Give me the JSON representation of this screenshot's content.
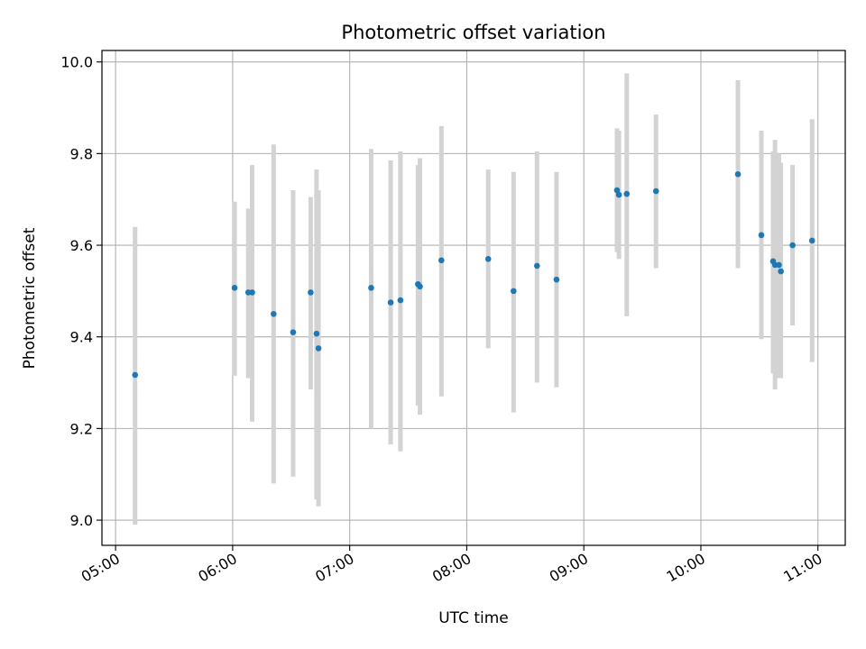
{
  "chart_data": {
    "type": "scatter",
    "title": "Photometric offset variation",
    "xlabel": "UTC time",
    "ylabel": "Photometric offset",
    "xlim": [
      "04:53",
      "11:14"
    ],
    "ylim": [
      8.945,
      10.025
    ],
    "x_ticks": [
      "05:00",
      "06:00",
      "07:00",
      "08:00",
      "09:00",
      "10:00",
      "11:00"
    ],
    "y_ticks": [
      "9.0",
      "9.2",
      "9.4",
      "9.6",
      "9.8",
      "10.0"
    ],
    "grid": true,
    "colors": {
      "point": "#1f77b4",
      "errorbar": "#d3d3d3",
      "grid": "#b0b0b0"
    },
    "points": [
      {
        "x": "05:10",
        "y": 9.317,
        "ymin": 8.99,
        "ymax": 9.64
      },
      {
        "x": "06:01",
        "y": 9.507,
        "ymin": 9.315,
        "ymax": 9.695
      },
      {
        "x": "06:08",
        "y": 9.497,
        "ymin": 9.31,
        "ymax": 9.68
      },
      {
        "x": "06:10",
        "y": 9.497,
        "ymin": 9.215,
        "ymax": 9.775
      },
      {
        "x": "06:21",
        "y": 9.45,
        "ymin": 9.08,
        "ymax": 9.82
      },
      {
        "x": "06:31",
        "y": 9.41,
        "ymin": 9.095,
        "ymax": 9.72
      },
      {
        "x": "06:40",
        "y": 9.497,
        "ymin": 9.285,
        "ymax": 9.705
      },
      {
        "x": "06:43",
        "y": 9.407,
        "ymin": 9.045,
        "ymax": 9.765
      },
      {
        "x": "06:44",
        "y": 9.375,
        "ymin": 9.03,
        "ymax": 9.72
      },
      {
        "x": "07:11",
        "y": 9.507,
        "ymin": 9.2,
        "ymax": 9.81
      },
      {
        "x": "07:21",
        "y": 9.475,
        "ymin": 9.165,
        "ymax": 9.785
      },
      {
        "x": "07:26",
        "y": 9.48,
        "ymin": 9.15,
        "ymax": 9.805
      },
      {
        "x": "07:35",
        "y": 9.515,
        "ymin": 9.25,
        "ymax": 9.775
      },
      {
        "x": "07:36",
        "y": 9.51,
        "ymin": 9.23,
        "ymax": 9.79
      },
      {
        "x": "07:47",
        "y": 9.567,
        "ymin": 9.27,
        "ymax": 9.86
      },
      {
        "x": "08:11",
        "y": 9.57,
        "ymin": 9.375,
        "ymax": 9.765
      },
      {
        "x": "08:24",
        "y": 9.5,
        "ymin": 9.235,
        "ymax": 9.76
      },
      {
        "x": "08:36",
        "y": 9.555,
        "ymin": 9.3,
        "ymax": 9.805
      },
      {
        "x": "08:46",
        "y": 9.525,
        "ymin": 9.29,
        "ymax": 9.76
      },
      {
        "x": "09:17",
        "y": 9.72,
        "ymin": 9.585,
        "ymax": 9.855
      },
      {
        "x": "09:18",
        "y": 9.71,
        "ymin": 9.57,
        "ymax": 9.85
      },
      {
        "x": "09:22",
        "y": 9.712,
        "ymin": 9.445,
        "ymax": 9.975
      },
      {
        "x": "09:37",
        "y": 9.718,
        "ymin": 9.55,
        "ymax": 9.885
      },
      {
        "x": "10:19",
        "y": 9.755,
        "ymin": 9.55,
        "ymax": 9.96
      },
      {
        "x": "10:31",
        "y": 9.622,
        "ymin": 9.395,
        "ymax": 9.85
      },
      {
        "x": "10:37",
        "y": 9.565,
        "ymin": 9.32,
        "ymax": 9.805
      },
      {
        "x": "10:38",
        "y": 9.557,
        "ymin": 9.285,
        "ymax": 9.83
      },
      {
        "x": "10:40",
        "y": 9.557,
        "ymin": 9.31,
        "ymax": 9.8
      },
      {
        "x": "10:41",
        "y": 9.543,
        "ymin": 9.31,
        "ymax": 9.78
      },
      {
        "x": "10:47",
        "y": 9.6,
        "ymin": 9.425,
        "ymax": 9.775
      },
      {
        "x": "10:57",
        "y": 9.61,
        "ymin": 9.345,
        "ymax": 9.875
      }
    ]
  }
}
